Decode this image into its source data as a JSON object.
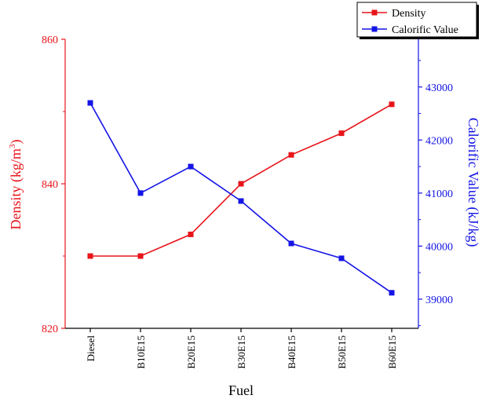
{
  "chart_data": {
    "type": "line",
    "xlabel": "Fuel",
    "categories": [
      "Diesel",
      "B10E15",
      "B20E15",
      "B30E15",
      "B40E15",
      "B50E15",
      "B60E15"
    ],
    "y_left": {
      "label_main": "Density (kg/m",
      "label_sup": "3",
      "label_close": ")",
      "ylim": [
        820,
        860
      ],
      "ticks": [
        820,
        840,
        860
      ],
      "tick_labels": [
        "820",
        "840",
        "860"
      ],
      "color": "#e8141a"
    },
    "y_right": {
      "label": "Calorific Value (kJ/kg)",
      "ylim": [
        38450,
        43900
      ],
      "ticks": [
        39000,
        40000,
        41000,
        42000,
        43000
      ],
      "tick_labels": [
        "39000",
        "40000",
        "41000",
        "42000",
        "43000"
      ],
      "color": "#1414e6"
    },
    "series": [
      {
        "name": "Density",
        "axis": "left",
        "color": "#e8141a",
        "values": [
          830,
          830,
          833,
          840,
          844,
          847,
          851
        ]
      },
      {
        "name": "Calorific Value",
        "axis": "right",
        "color": "#1414e6",
        "values": [
          42700,
          41000,
          41500,
          40850,
          40050,
          39770,
          39120
        ]
      }
    ],
    "legend_position": "top-right",
    "grid": false
  }
}
